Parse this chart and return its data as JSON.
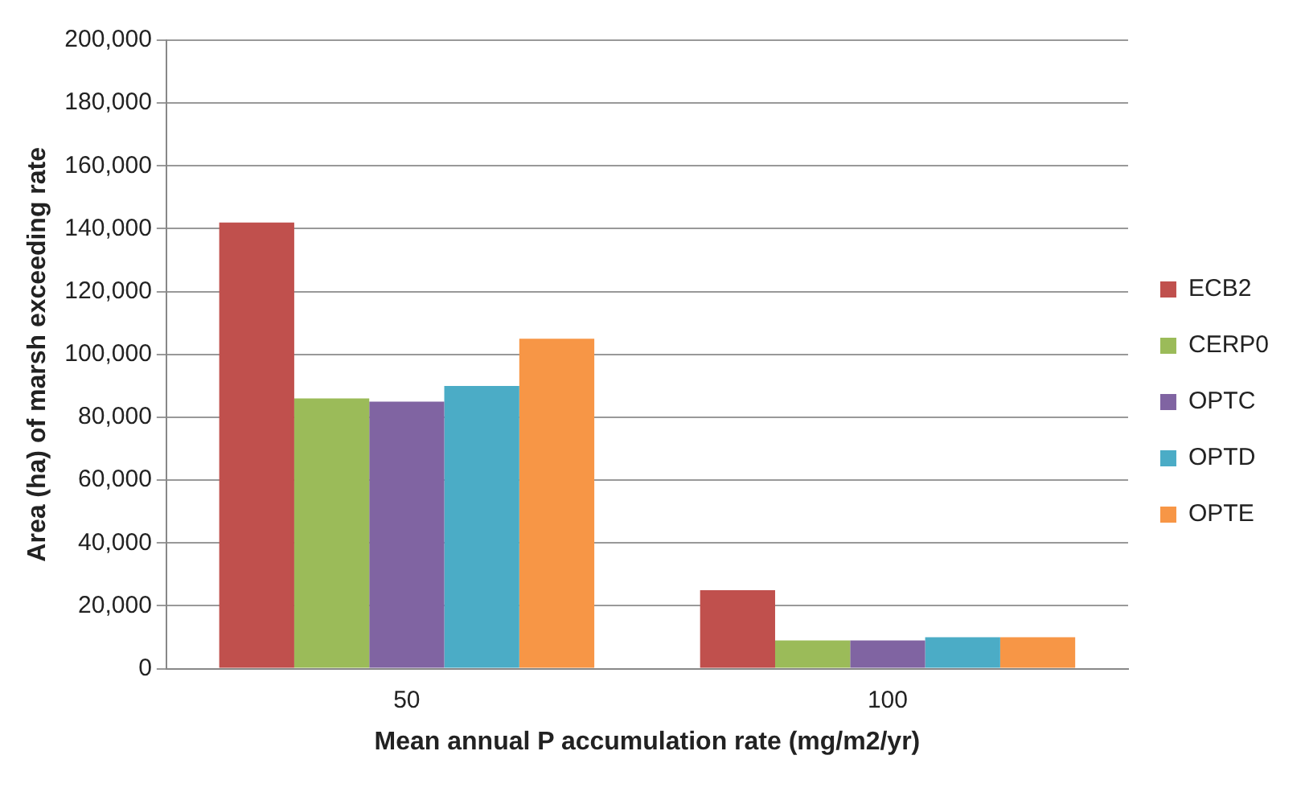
{
  "chart_data": {
    "type": "bar",
    "xlabel": "Mean annual P accumulation rate (mg/m2/yr)",
    "ylabel": "Area (ha) of marsh exceeding rate",
    "categories": [
      "50",
      "100"
    ],
    "series": [
      {
        "name": "ECB2",
        "color": "#c0504d",
        "values": [
          142000,
          25000
        ]
      },
      {
        "name": "CERP0",
        "color": "#9bbb59",
        "values": [
          86000,
          9000
        ]
      },
      {
        "name": "OPTC",
        "color": "#8064a2",
        "values": [
          85000,
          9000
        ]
      },
      {
        "name": "OPTD",
        "color": "#4bacc6",
        "values": [
          90000,
          10000
        ]
      },
      {
        "name": "OPTE",
        "color": "#f79646",
        "values": [
          105000,
          10000
        ]
      }
    ],
    "ylim": [
      0,
      200000
    ],
    "yticks": [
      {
        "value": 0,
        "label": "0"
      },
      {
        "value": 20000,
        "label": "20,000"
      },
      {
        "value": 40000,
        "label": "40,000"
      },
      {
        "value": 60000,
        "label": "60,000"
      },
      {
        "value": 80000,
        "label": "80,000"
      },
      {
        "value": 100000,
        "label": "100,000"
      },
      {
        "value": 120000,
        "label": "120,000"
      },
      {
        "value": 140000,
        "label": "140,000"
      },
      {
        "value": 160000,
        "label": "160,000"
      },
      {
        "value": 180000,
        "label": "180,000"
      },
      {
        "value": 200000,
        "label": "200,000"
      }
    ],
    "grid": "y",
    "legend": "right"
  }
}
